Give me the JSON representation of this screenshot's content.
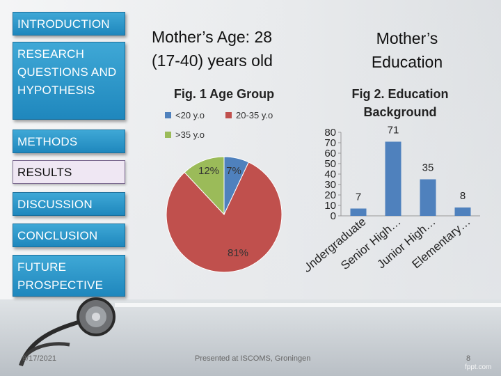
{
  "nav": {
    "introduction": "INTRODUCTION",
    "research_line1": "RESEARCH",
    "research_line2": "QUESTIONS AND",
    "research_line3": "HYPOTHESIS",
    "methods": "METHODS",
    "results": "RESULTS",
    "discussion": "DISCUSSION",
    "conclusion": "CONCLUSION",
    "future_line1": "FUTURE",
    "future_line2": "PROSPECTIVE"
  },
  "headings": {
    "age_line1": "Mother’s Age: 28",
    "age_line2": "(17-40) years old",
    "edu_line1": "Mother’s",
    "edu_line2": "Education"
  },
  "footer": {
    "date": "9/17/2021",
    "presented": "Presented at ISCOMS, Groningen",
    "page": "8",
    "watermark": "fppt.com"
  },
  "colors": {
    "blue": "#4f81bd",
    "red": "#c0504d",
    "green": "#9bbb59",
    "nav": "#2a96c9"
  },
  "chart_data": [
    {
      "type": "pie",
      "title": "Fig. 1 Age Group",
      "legend_position": "top",
      "categories": [
        "<20 y.o",
        "20-35 y.o",
        ">35 y.o"
      ],
      "values": [
        7,
        81,
        12
      ],
      "labels": [
        "7%",
        "81%",
        "12%"
      ],
      "colors": [
        "#4f81bd",
        "#c0504d",
        "#9bbb59"
      ]
    },
    {
      "type": "bar",
      "title_line1": "Fig 2. Education",
      "title_line2": "Background",
      "categories": [
        "Undergraduate",
        "Senior High…",
        "Junior High…",
        "Elementary…"
      ],
      "values": [
        7,
        71,
        35,
        8
      ],
      "ylim": [
        0,
        80
      ],
      "yticks": [
        0,
        10,
        20,
        30,
        40,
        50,
        60,
        70,
        80
      ],
      "grid": false,
      "color": "#4f81bd"
    }
  ]
}
